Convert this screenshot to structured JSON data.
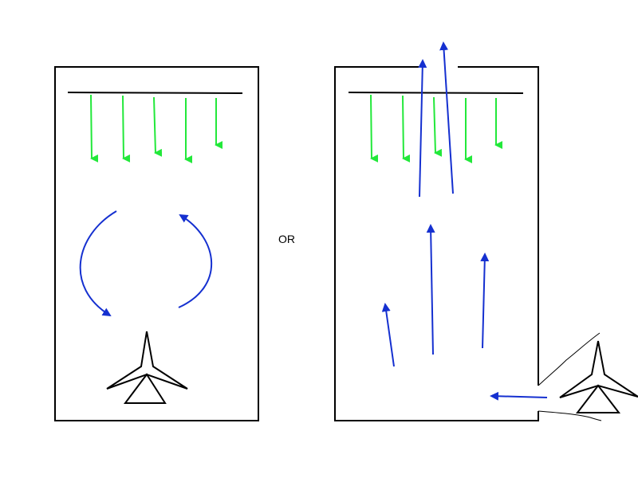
{
  "separator_text": "OR",
  "colors": {
    "outline": "#000000",
    "downflow_arrow": "#22e83a",
    "airflow_arrow": "#1530d0",
    "background": "#ffffff"
  },
  "panels": [
    {
      "name": "left-panel",
      "description_icons": [
        "ceiling-bar",
        "downward-airflow-arrows",
        "recirculation-arrows",
        "fan-icon"
      ]
    },
    {
      "name": "right-panel",
      "description_icons": [
        "ceiling-bar-with-opening",
        "downward-airflow-arrows",
        "upward-airflow-arrows",
        "side-inlet-arrow",
        "fan-icon-outside"
      ]
    }
  ]
}
